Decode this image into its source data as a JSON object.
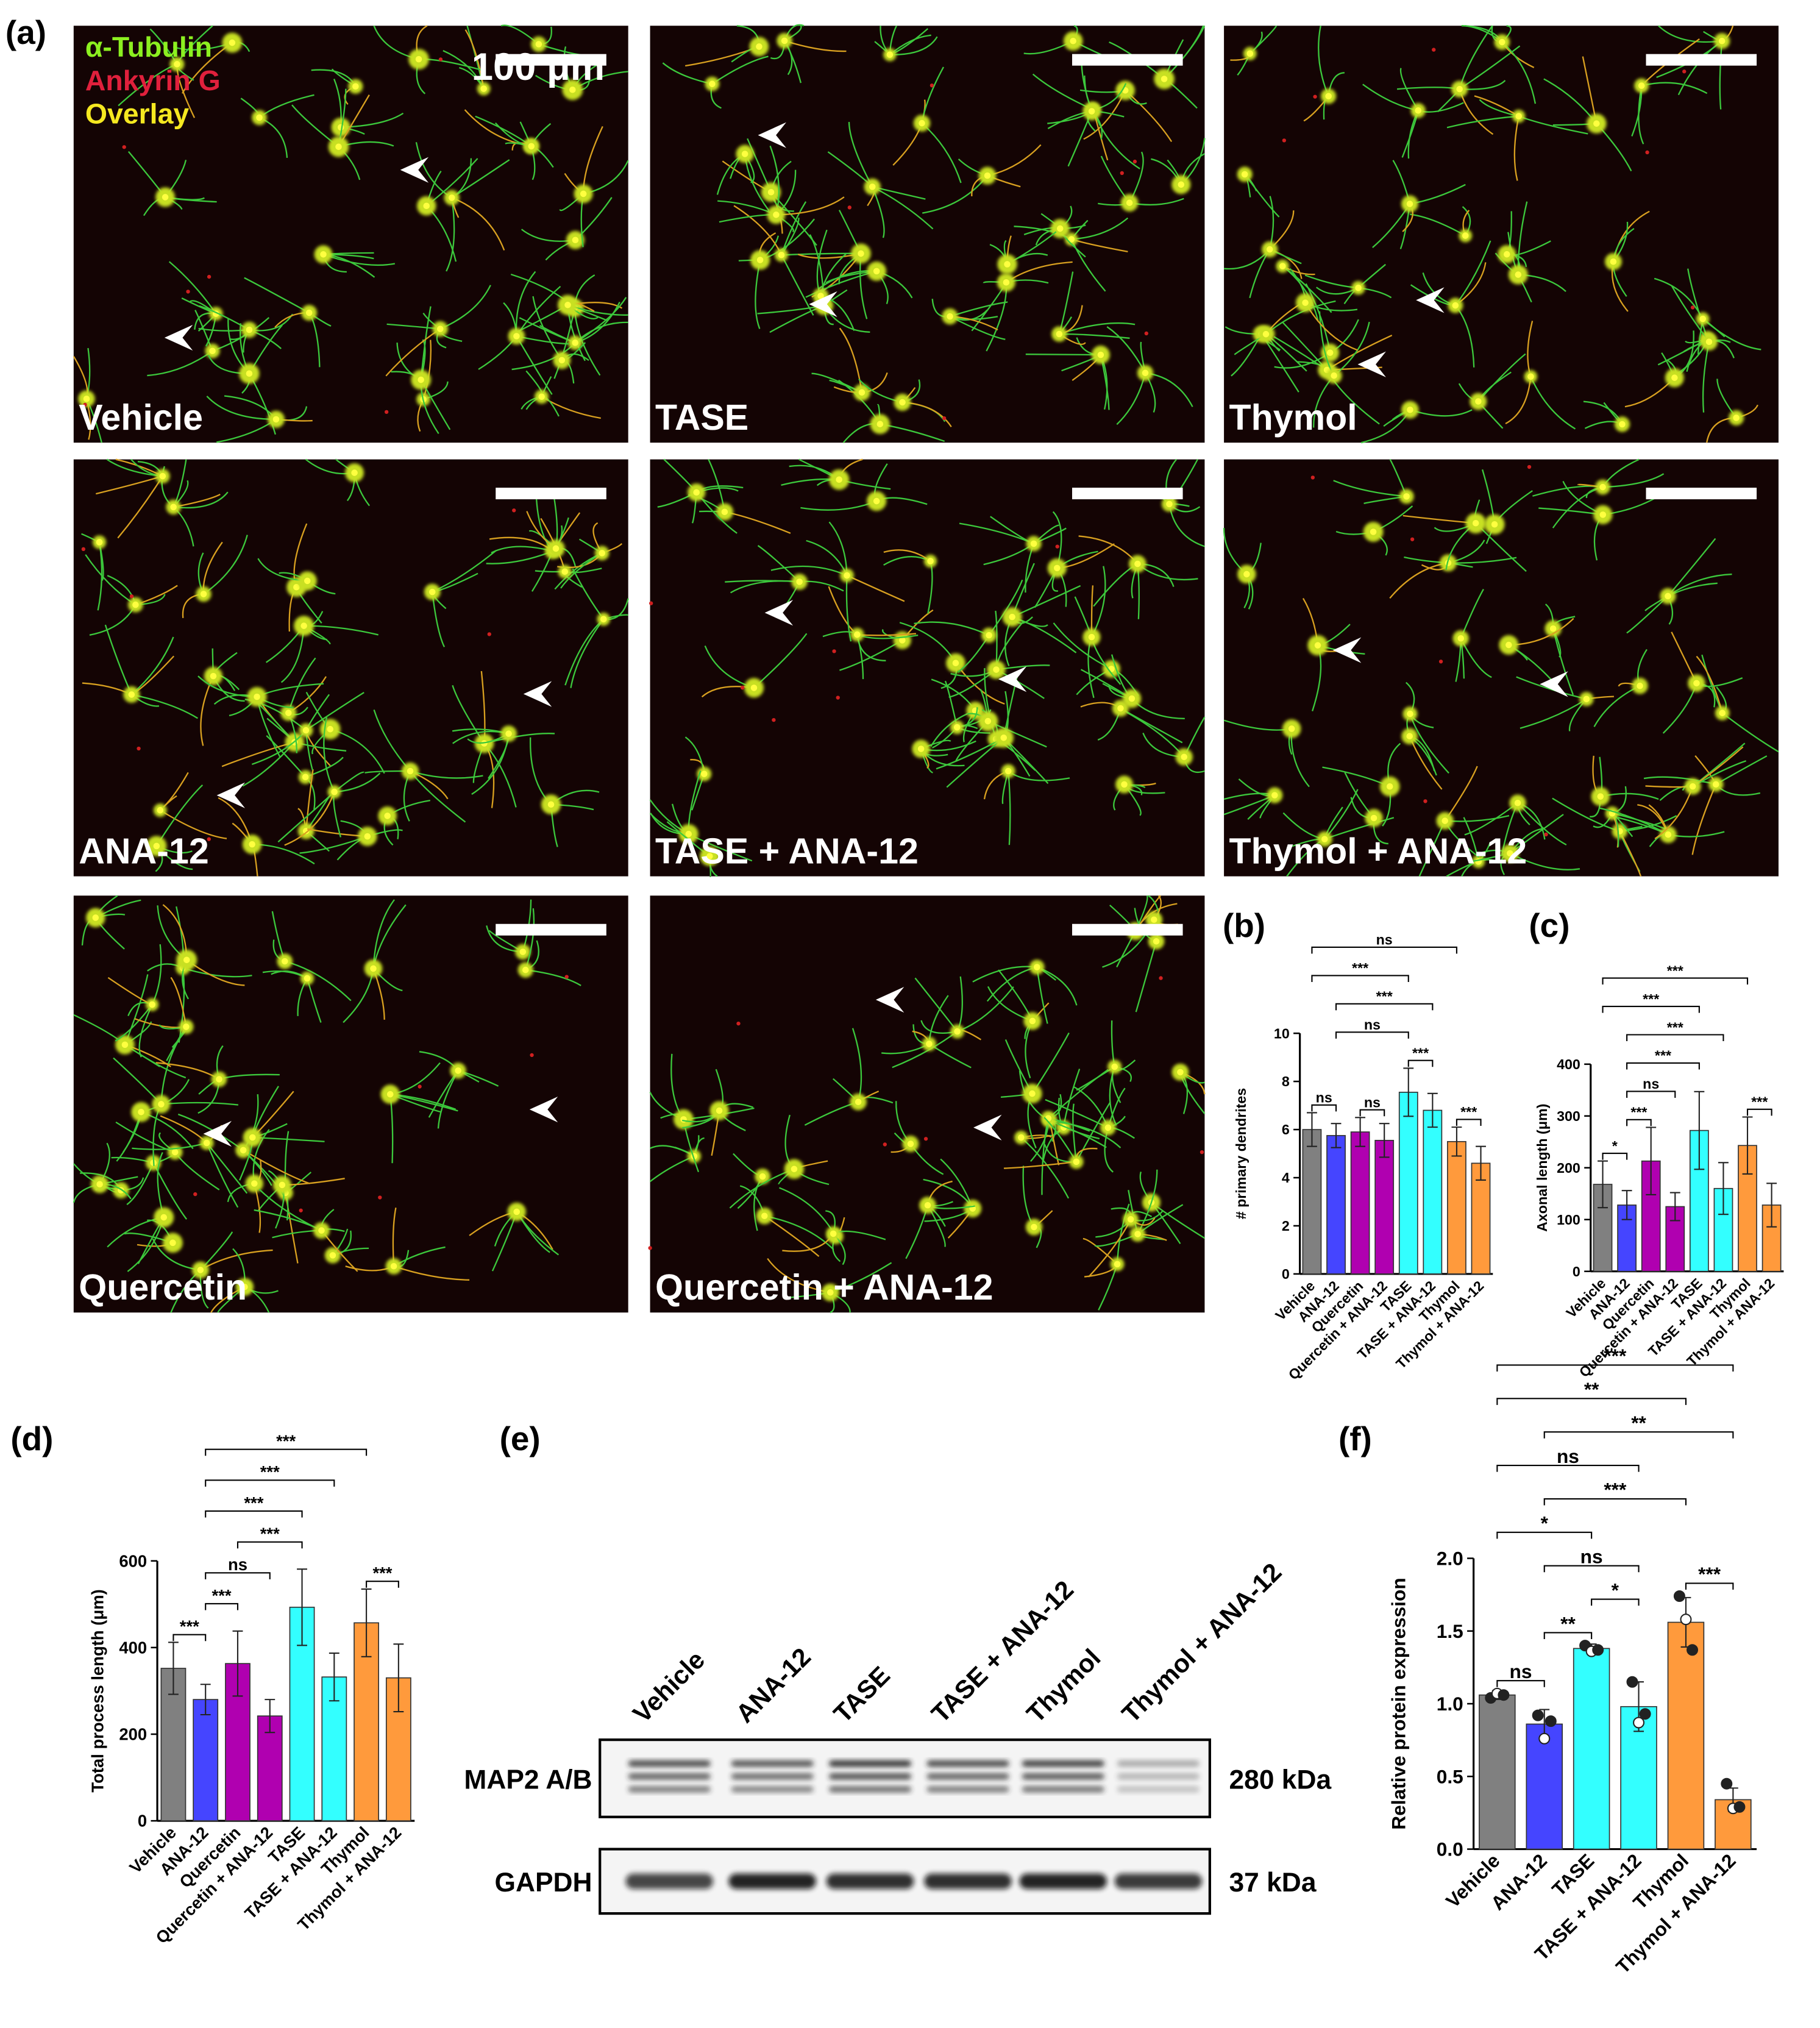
{
  "micrographs": {
    "panel_label": "(a)",
    "legend": [
      "α-Tubulin",
      "Ankyrin G",
      "Overlay"
    ],
    "scale_bar": "100 μm",
    "panels": [
      "Vehicle",
      "TASE",
      "Thymol",
      "ANA-12",
      "TASE + ANA-12",
      "Thymol + ANA-12",
      "Quercetin",
      "Quercetin + ANA-12"
    ]
  },
  "chart_data": [
    {
      "type": "bar",
      "panel_label": "(b)",
      "ylabel": "# primary dendrites",
      "categories": [
        "Vehicle",
        "ANA-12",
        "Quercetin",
        "Quercetin + ANA-12",
        "TASE",
        "TASE + ANA-12",
        "Thymol",
        "Thymol + ANA-12"
      ],
      "colors": [
        "#808080",
        "#4545ff",
        "#b000b0",
        "#b000b0",
        "#33ffff",
        "#33ffff",
        "#ff9a3c",
        "#ff9a3c"
      ],
      "values": [
        6.0,
        5.75,
        5.9,
        5.55,
        7.55,
        6.8,
        5.5,
        4.6
      ],
      "errors": [
        0.7,
        0.5,
        0.6,
        0.7,
        1.0,
        0.7,
        0.6,
        0.7
      ],
      "ylim": [
        0,
        10
      ],
      "yticks": [
        0,
        2,
        4,
        6,
        8,
        10
      ],
      "significance": [
        {
          "pair": [
            0,
            1
          ],
          "label": "ns"
        },
        {
          "pair": [
            2,
            3
          ],
          "label": "ns"
        },
        {
          "pair": [
            4,
            5
          ],
          "label": "***"
        },
        {
          "pair": [
            6,
            7
          ],
          "label": "***"
        },
        {
          "pair": [
            1,
            5
          ],
          "label": "***"
        },
        {
          "pair": [
            1,
            4
          ],
          "label": "ns"
        },
        {
          "pair": [
            0,
            4
          ],
          "label": "***"
        },
        {
          "pair": [
            0,
            6
          ],
          "label": "ns"
        }
      ]
    },
    {
      "type": "bar",
      "panel_label": "(c)",
      "ylabel": "Axonal length (μm)",
      "categories": [
        "Vehicle",
        "ANA-12",
        "Quercetin",
        "Quercetin + ANA-12",
        "TASE",
        "TASE + ANA-12",
        "Thymol",
        "Thymol + ANA-12"
      ],
      "colors": [
        "#808080",
        "#4545ff",
        "#b000b0",
        "#b000b0",
        "#33ffff",
        "#33ffff",
        "#ff9a3c",
        "#ff9a3c"
      ],
      "values": [
        168,
        128,
        213,
        125,
        272,
        160,
        243,
        128
      ],
      "errors": [
        45,
        28,
        65,
        27,
        75,
        50,
        55,
        42
      ],
      "ylim": [
        0,
        400
      ],
      "yticks": [
        0,
        100,
        200,
        300,
        400
      ],
      "significance": [
        {
          "pair": [
            0,
            1
          ],
          "label": "*"
        },
        {
          "pair": [
            1,
            2
          ],
          "label": "***"
        },
        {
          "pair": [
            6,
            7
          ],
          "label": "***"
        },
        {
          "pair": [
            1,
            3
          ],
          "label": "ns"
        },
        {
          "pair": [
            1,
            4
          ],
          "label": "***"
        },
        {
          "pair": [
            1,
            5
          ],
          "label": "***"
        },
        {
          "pair": [
            0,
            4
          ],
          "label": "***"
        },
        {
          "pair": [
            0,
            6
          ],
          "label": "***"
        }
      ]
    },
    {
      "type": "bar",
      "panel_label": "(d)",
      "ylabel": "Total process length (μm)",
      "categories": [
        "Vehicle",
        "ANA-12",
        "Quercetin",
        "Quercetin + ANA-12",
        "TASE",
        "TASE + ANA-12",
        "Thymol",
        "Thymol + ANA-12"
      ],
      "colors": [
        "#808080",
        "#4545ff",
        "#b000b0",
        "#b000b0",
        "#33ffff",
        "#33ffff",
        "#ff9a3c",
        "#ff9a3c"
      ],
      "values": [
        352,
        280,
        363,
        242,
        493,
        332,
        457,
        330
      ],
      "errors": [
        60,
        35,
        75,
        38,
        88,
        55,
        78,
        78
      ],
      "ylim": [
        0,
        600
      ],
      "yticks": [
        0,
        200,
        400,
        600
      ],
      "significance": [
        {
          "pair": [
            0,
            1
          ],
          "label": "***"
        },
        {
          "pair": [
            1,
            2
          ],
          "label": "***"
        },
        {
          "pair": [
            6,
            7
          ],
          "label": "***"
        },
        {
          "pair": [
            1,
            3
          ],
          "label": "ns"
        },
        {
          "pair": [
            1,
            5
          ],
          "label": "***"
        },
        {
          "pair": [
            2,
            4
          ],
          "label": "***"
        },
        {
          "pair": [
            1,
            4
          ],
          "label": "***"
        },
        {
          "pair": [
            1,
            6
          ],
          "label": "***"
        }
      ]
    },
    {
      "type": "bar",
      "panel_label": "(f)",
      "ylabel": "Relative protein expression",
      "categories": [
        "Vehicle",
        "ANA-12",
        "TASE",
        "TASE + ANA-12",
        "Thymol",
        "Thymol + ANA-12"
      ],
      "colors": [
        "#808080",
        "#4545ff",
        "#33ffff",
        "#33ffff",
        "#ff9a3c",
        "#ff9a3c"
      ],
      "values": [
        1.06,
        0.86,
        1.38,
        0.98,
        1.56,
        0.34
      ],
      "errors": [
        0.03,
        0.1,
        0.03,
        0.17,
        0.17,
        0.08
      ],
      "points": [
        [
          1.04,
          1.07,
          1.06
        ],
        [
          0.92,
          0.76,
          0.88
        ],
        [
          1.4,
          1.36,
          1.37
        ],
        [
          1.15,
          0.87,
          0.93
        ],
        [
          1.74,
          1.58,
          1.37
        ],
        [
          0.45,
          0.28,
          0.29
        ]
      ],
      "ylim": [
        0,
        2.0
      ],
      "yticks": [
        {
          "value": 0,
          "label": "0.0"
        },
        0.5,
        {
          "value": 1,
          "label": "1.0"
        },
        1.5,
        {
          "value": 2,
          "label": "2.0"
        }
      ],
      "significance": [
        {
          "pair": [
            0,
            1
          ],
          "label": "ns"
        },
        {
          "pair": [
            1,
            2
          ],
          "label": "**"
        },
        {
          "pair": [
            2,
            3
          ],
          "label": "*"
        },
        {
          "pair": [
            4,
            5
          ],
          "label": "***"
        },
        {
          "pair": [
            1,
            3
          ],
          "label": "ns"
        },
        {
          "pair": [
            1,
            4
          ],
          "label": "***"
        },
        {
          "pair": [
            1,
            5
          ],
          "label": "**"
        },
        {
          "pair": [
            0,
            2
          ],
          "label": "*"
        },
        {
          "pair": [
            0,
            3
          ],
          "label": "ns"
        },
        {
          "pair": [
            0,
            4
          ],
          "label": "**"
        },
        {
          "pair": [
            0,
            5
          ],
          "label": "***"
        }
      ]
    }
  ],
  "blot": {
    "panel_label": "(e)",
    "lanes": [
      "Vehicle",
      "ANA-12",
      "TASE",
      "TASE + ANA-12",
      "Thymol",
      "Thymol + ANA-12"
    ],
    "rows": [
      {
        "name": "MAP2 A/B",
        "size": "280 kDa"
      },
      {
        "name": "GAPDH",
        "size": "37 kDa"
      }
    ]
  }
}
